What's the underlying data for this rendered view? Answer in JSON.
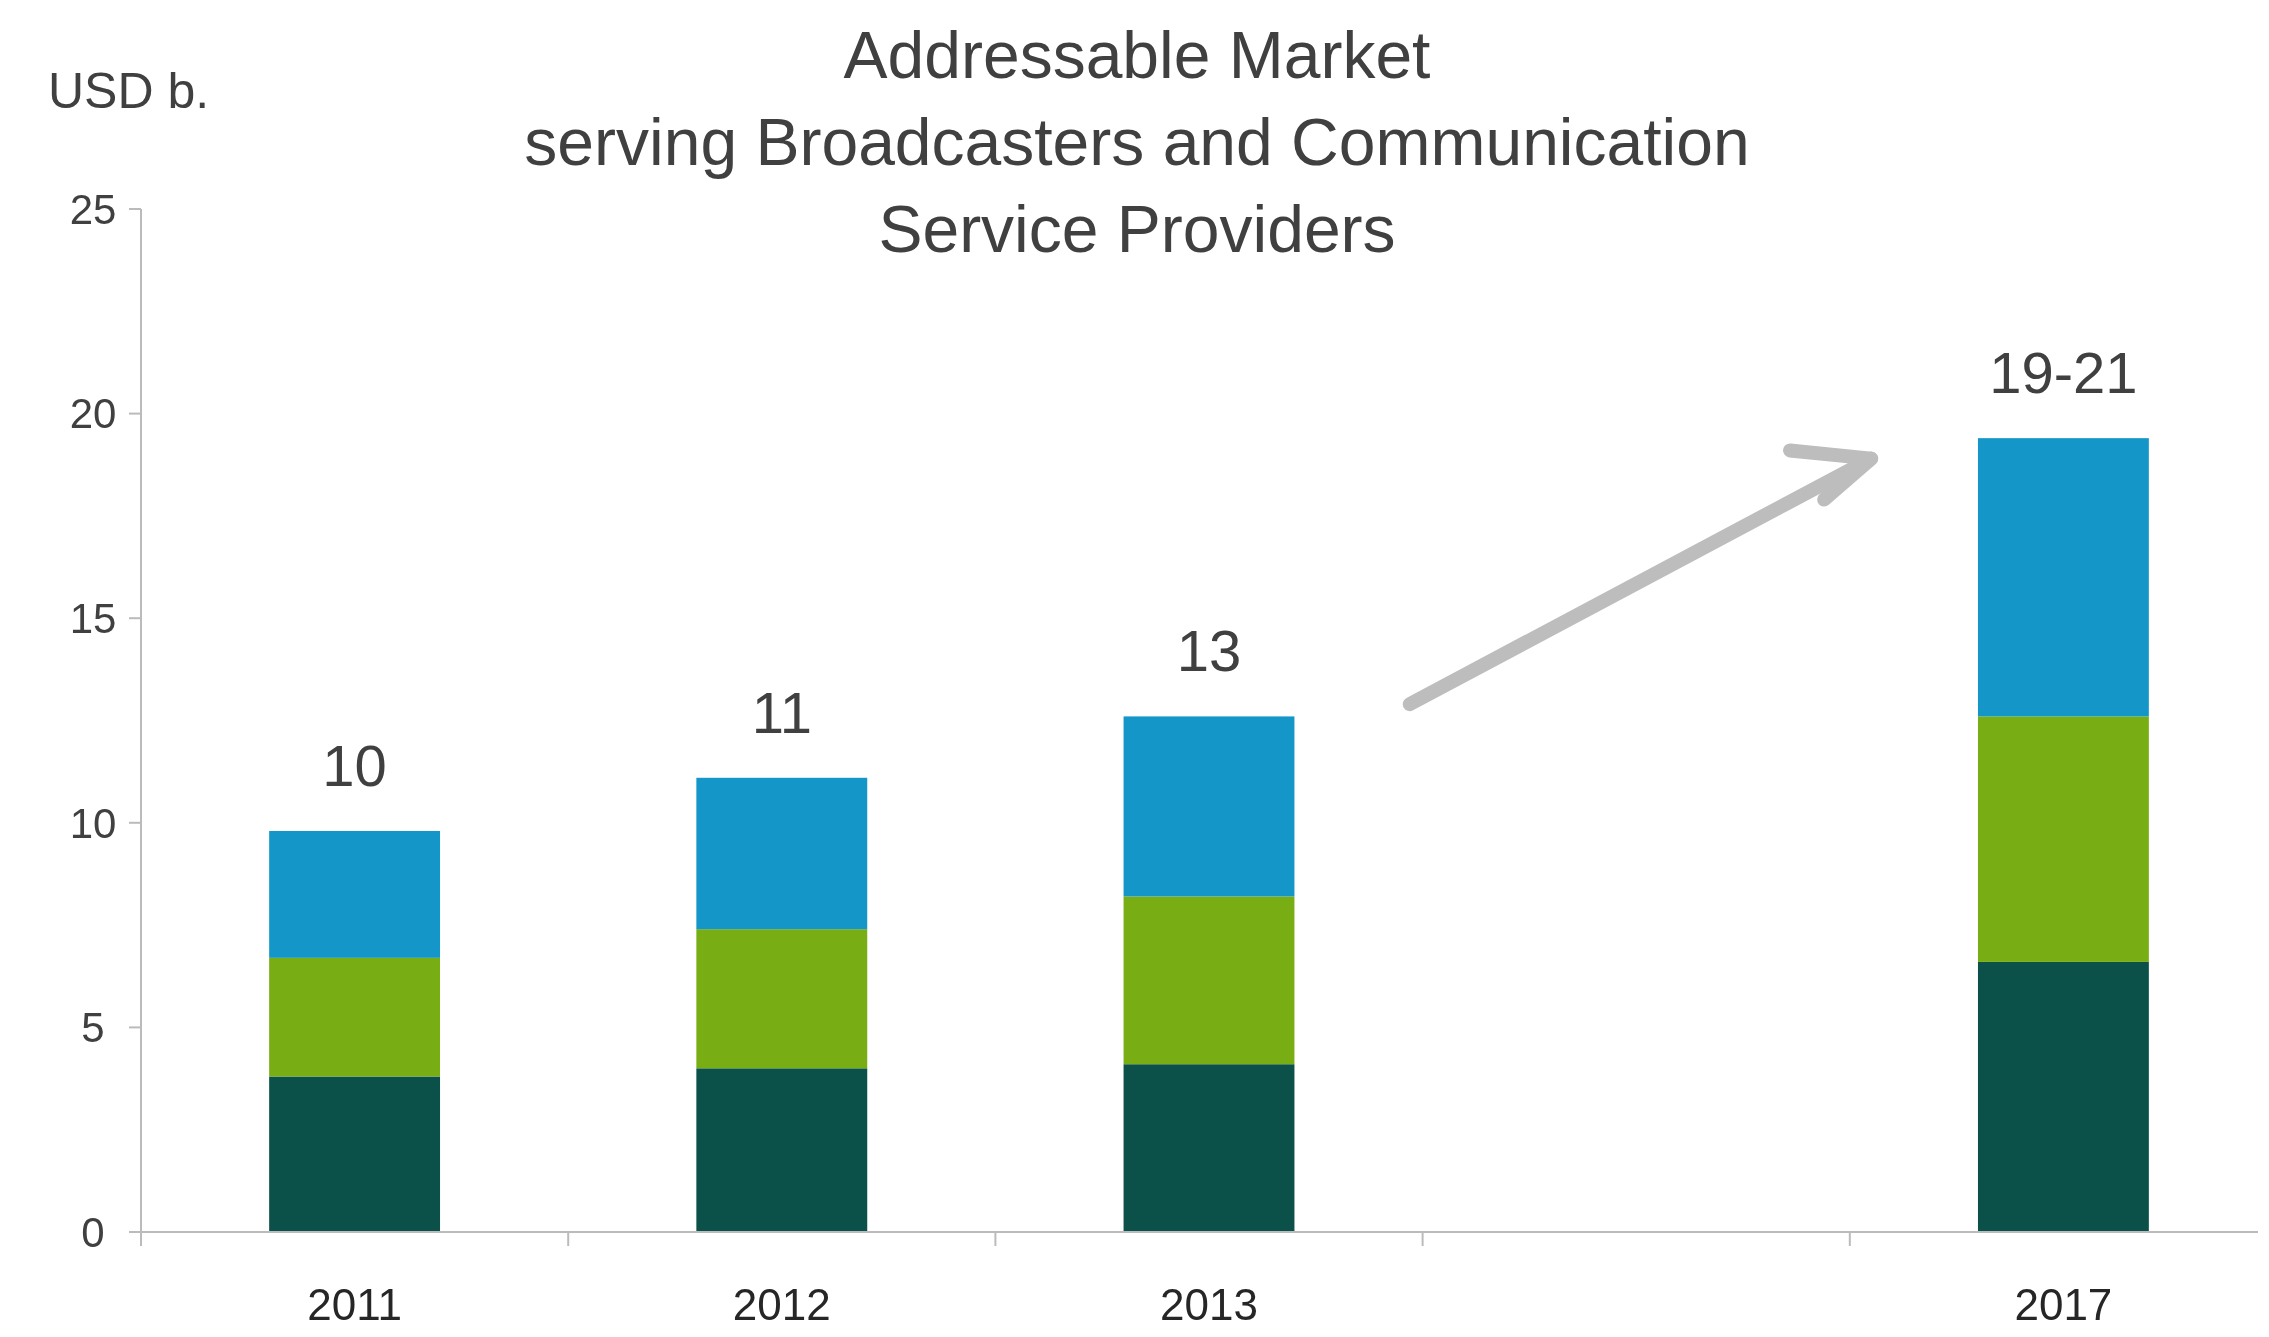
{
  "chart_data": {
    "type": "bar",
    "title": "Addressable Market\nserving Broadcasters and Communication\nService Providers",
    "ylabel": "USD b.",
    "categories": [
      "2011",
      "2012",
      "2013",
      null,
      "2017"
    ],
    "stacked": true,
    "series": [
      {
        "color": "#0b5049",
        "values": [
          3.8,
          4.0,
          4.1,
          null,
          6.6
        ]
      },
      {
        "color": "#78ad14",
        "values": [
          2.9,
          3.4,
          4.1,
          null,
          6.0
        ]
      },
      {
        "color": "#1497c8",
        "values": [
          3.1,
          3.7,
          4.4,
          null,
          6.8
        ]
      }
    ],
    "totals": [
      "10",
      "11",
      "13",
      null,
      "19-21"
    ],
    "ylim": [
      0,
      25
    ],
    "yticks": [
      0,
      5,
      10,
      15,
      20,
      25
    ],
    "grid": false
  }
}
